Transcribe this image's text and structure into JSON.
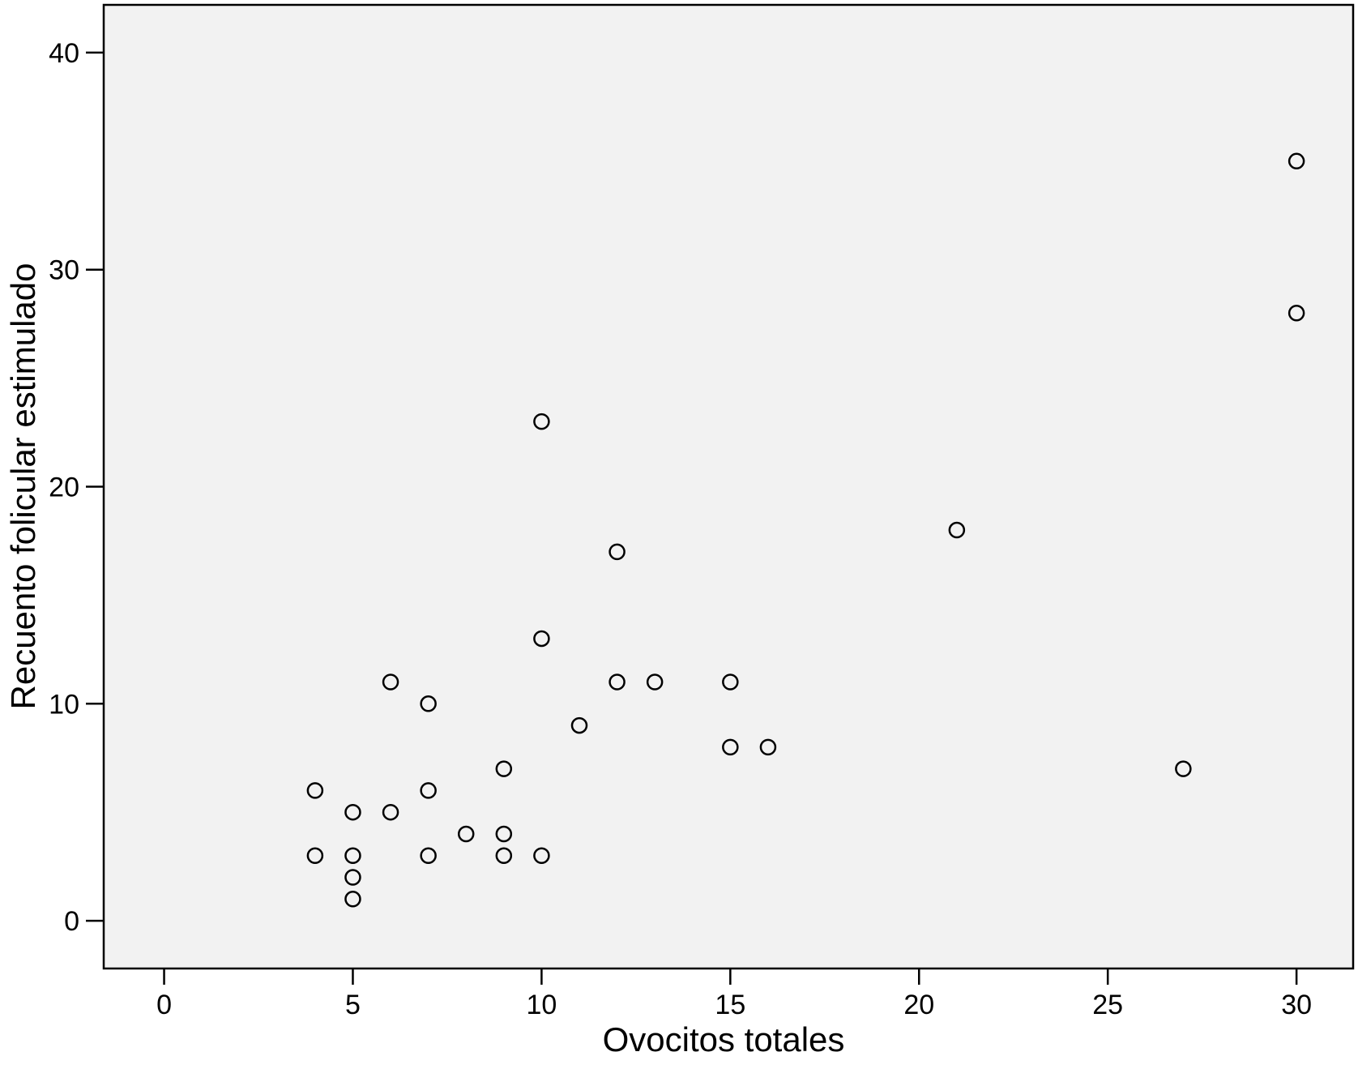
{
  "chart_data": {
    "type": "scatter",
    "title": "",
    "xlabel": "Ovocitos totales",
    "ylabel": "Recuento folicular estimulado",
    "xlim": [
      -1.6,
      31.5
    ],
    "ylim": [
      -2.2,
      42.2
    ],
    "xticks": [
      0,
      5,
      10,
      15,
      20,
      25,
      30
    ],
    "yticks": [
      0,
      10,
      20,
      30,
      40
    ],
    "grid": false,
    "legend": "none",
    "colors": {
      "plot_background": "#f2f2f2",
      "marker_stroke": "#000000",
      "marker_fill": "#f2f2f2"
    },
    "series": [
      {
        "x": [
          4,
          4,
          5,
          5,
          5,
          5,
          6,
          6,
          7,
          7,
          7,
          8,
          9,
          9,
          9,
          10,
          10,
          10,
          11,
          12,
          12,
          13,
          15,
          15,
          16,
          21,
          27,
          30,
          30
        ],
        "y": [
          6,
          3,
          5,
          3,
          2,
          1,
          11,
          5,
          10,
          6,
          3,
          4,
          7,
          4,
          3,
          23,
          13,
          3,
          9,
          17,
          11,
          11,
          11,
          8,
          8,
          18,
          7,
          35,
          28
        ]
      }
    ]
  }
}
